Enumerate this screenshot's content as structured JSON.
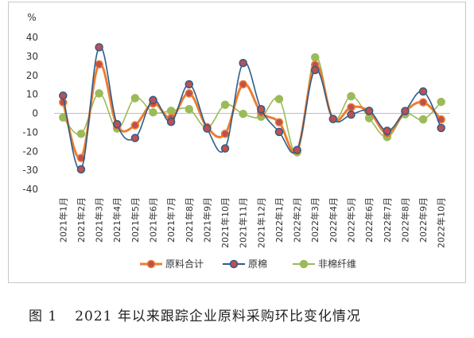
{
  "chart_data": {
    "type": "line",
    "ylabel": "%",
    "ylim": [
      -40,
      40
    ],
    "yticks": [
      40,
      30,
      20,
      10,
      0,
      -10,
      -20,
      -30,
      -40
    ],
    "grid": false,
    "legend_position": "bottom",
    "categories": [
      "2021年1月",
      "2021年2月",
      "2021年3月",
      "2021年4月",
      "2021年5月",
      "2021年6月",
      "2021年7月",
      "2021年8月",
      "2021年9月",
      "2021年10月",
      "2021年11月",
      "2021年12月",
      "2022年1月",
      "2022年2月",
      "2022年3月",
      "2022年4月",
      "2022年5月",
      "2022年6月",
      "2022年7月",
      "2022年8月",
      "2022年9月",
      "2022年10月"
    ],
    "series": [
      {
        "name": "原料合计",
        "color": "#ed7d31",
        "marker_color": "#c0504d",
        "values": [
          5.8,
          -23.5,
          25.8,
          -6.5,
          -6.3,
          5.2,
          -2.5,
          10.5,
          -7.3,
          -10.8,
          15.3,
          0.5,
          -4.7,
          -19.5,
          25.5,
          -3.0,
          3.2,
          1.0,
          -10.5,
          1.0,
          5.8,
          -3.2
        ]
      },
      {
        "name": "原棉",
        "color": "#2e5c8a",
        "marker_color": "#c0504d",
        "values": [
          9.3,
          -29.5,
          34.8,
          -5.7,
          -13.0,
          7.0,
          -4.5,
          15.3,
          -8.0,
          -18.5,
          26.5,
          2.2,
          -9.8,
          -19.3,
          22.8,
          -3.0,
          -0.7,
          1.3,
          -9.2,
          1.2,
          11.5,
          -7.7
        ]
      },
      {
        "name": "非棉纤维",
        "color": "#9bbb59",
        "marker_color": "#9bbb59",
        "values": [
          -2.2,
          -10.8,
          10.5,
          -8.0,
          8.0,
          0.5,
          1.3,
          2.2,
          -7.5,
          4.5,
          -0.3,
          -1.8,
          7.5,
          -20.5,
          29.5,
          -3.0,
          9.0,
          -2.5,
          -12.5,
          -0.5,
          -3.2,
          6.0
        ]
      }
    ]
  },
  "caption": {
    "figure_label": "图 1",
    "text": "2021 年以来跟踪企业原料采购环比变化情况"
  }
}
